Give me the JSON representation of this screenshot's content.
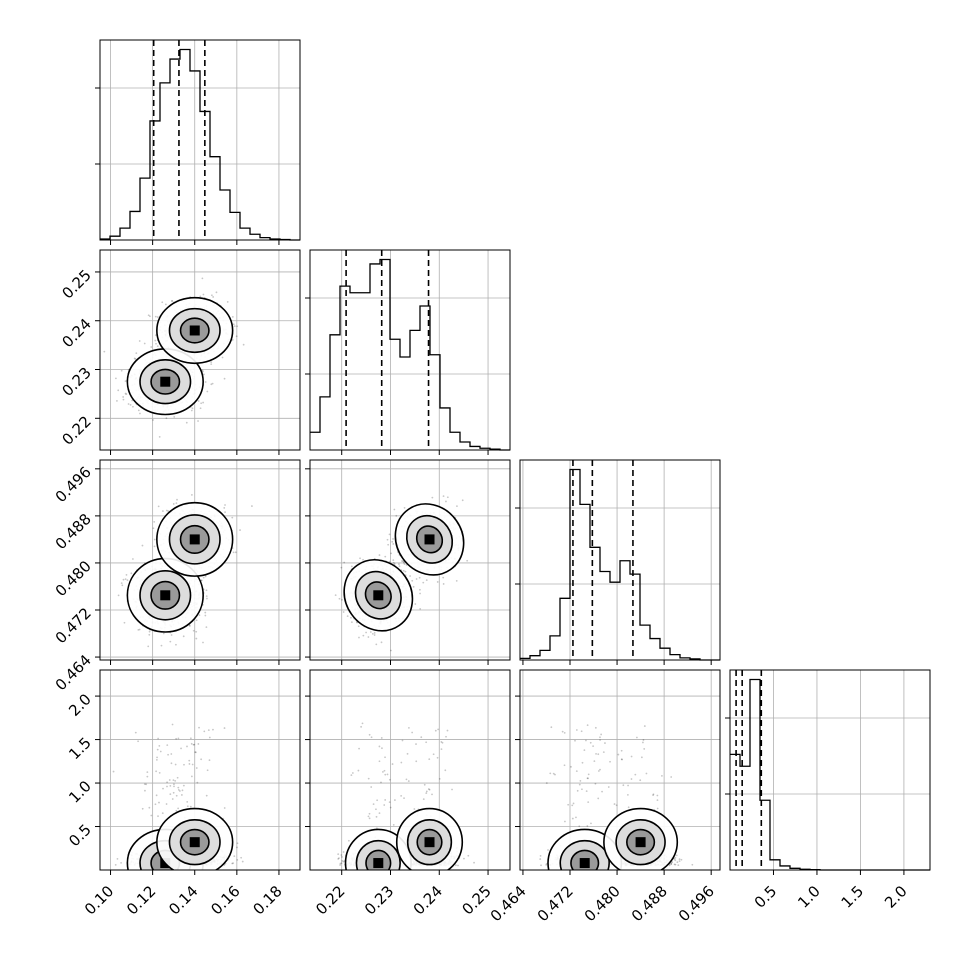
{
  "chart_data": {
    "type": "corner",
    "parameters": [
      {
        "range": [
          0.095,
          0.19
        ],
        "ticks": [
          0.1,
          0.12,
          0.14,
          0.16,
          0.18
        ],
        "tick_labels": [
          "0.10",
          "0.12",
          "0.14",
          "0.16",
          "0.18"
        ],
        "quantiles": [
          0.1205,
          0.1325,
          0.1448
        ],
        "mean": 0.132,
        "sd": 0.011
      },
      {
        "range": [
          0.2135,
          0.2545
        ],
        "ticks": [
          0.22,
          0.23,
          0.24,
          0.25
        ],
        "tick_labels": [
          "0.22",
          "0.23",
          "0.24",
          "0.25"
        ],
        "quantiles": [
          0.2209,
          0.2282,
          0.2378
        ]
      },
      {
        "range": [
          0.4635,
          0.4975
        ],
        "ticks": [
          0.464,
          0.472,
          0.48,
          0.488,
          0.496
        ],
        "tick_labels": [
          "0.464",
          "0.472",
          "0.480",
          "0.488",
          "0.496"
        ],
        "quantiles": [
          0.4725,
          0.4758,
          0.4827
        ]
      },
      {
        "range": [
          0.0,
          2.3
        ],
        "ticks": [
          0.5,
          1.0,
          1.5,
          2.0
        ],
        "tick_labels": [
          "0.5",
          "1.0",
          "1.5",
          "2.0"
        ],
        "quantiles": [
          0.07,
          0.14,
          0.36
        ]
      }
    ],
    "marginals": [
      {
        "bins": [
          0.095,
          0.19
        ],
        "counts": [
          2,
          8,
          25,
          60,
          130,
          250,
          330,
          380,
          400,
          355,
          270,
          175,
          105,
          58,
          25,
          12,
          5,
          2,
          1,
          0
        ]
      },
      {
        "bins": [
          0.2135,
          0.2545
        ],
        "counts": [
          40,
          120,
          260,
          370,
          355,
          355,
          420,
          430,
          250,
          210,
          270,
          325,
          215,
          95,
          40,
          18,
          8,
          4,
          2,
          0
        ]
      },
      {
        "bins": [
          0.4635,
          0.4975
        ],
        "counts": [
          3,
          8,
          18,
          45,
          115,
          355,
          290,
          210,
          165,
          145,
          185,
          160,
          65,
          40,
          22,
          10,
          4,
          2,
          0,
          0
        ]
      },
      {
        "bins": [
          0.0,
          2.3
        ],
        "counts": [
          340,
          305,
          560,
          205,
          30,
          12,
          5,
          2,
          1,
          0,
          0,
          0,
          0,
          0,
          0,
          0,
          0,
          0,
          0,
          0
        ]
      }
    ],
    "modes": {
      "note_units": "parameter values",
      "mode_a": [
        0.126,
        0.2275,
        0.4745,
        0.1
      ],
      "mode_b": [
        0.14,
        0.238,
        0.484,
        0.35
      ]
    }
  }
}
